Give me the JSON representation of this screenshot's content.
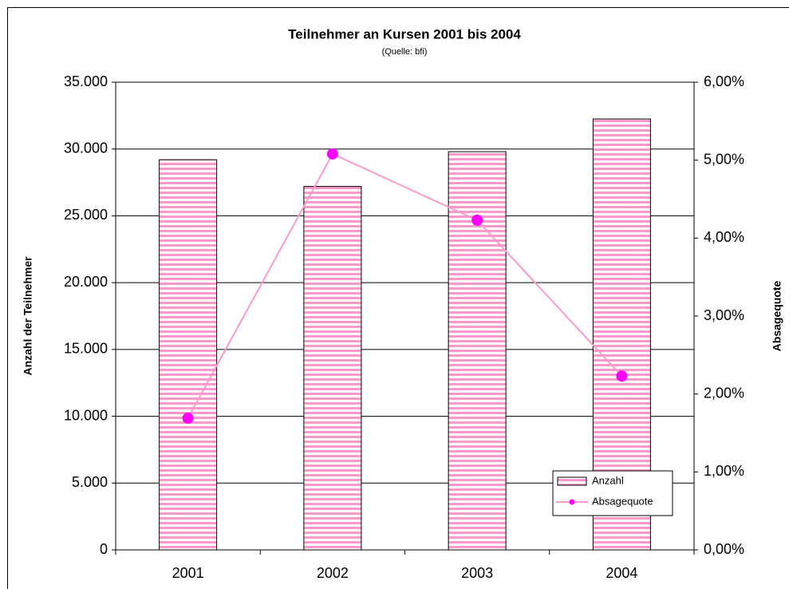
{
  "chart_data": {
    "type": "bar_line",
    "title": "Teilnehmer an Kursen 2001 bis 2004",
    "subtitle": "(Quelle: bfi)",
    "y_label": "Anzahl der Teilnehmer",
    "y2_label": "Absagequote",
    "categories": [
      "2001",
      "2002",
      "2003",
      "2004"
    ],
    "series": [
      {
        "name": "Anzahl",
        "type": "bar",
        "color": "#ff99cc",
        "values": [
          29200,
          27200,
          29800,
          32250
        ]
      },
      {
        "name": "Absagequote",
        "type": "line",
        "axis": "y2",
        "color": "#ff99cc",
        "marker_color": "#ff00ff",
        "values": [
          1.69,
          5.08,
          4.23,
          2.23
        ]
      }
    ],
    "ylim": [
      0,
      35000
    ],
    "yticks": [
      0,
      {
        "value": 5000,
        "label": "5.000"
      },
      {
        "value": 10000,
        "label": "10.000"
      },
      {
        "value": 15000,
        "label": "15.000"
      },
      {
        "value": 20000,
        "label": "20.000"
      },
      {
        "value": 25000,
        "label": "25.000"
      },
      {
        "value": 30000,
        "label": "30.000"
      },
      {
        "value": 35000,
        "label": "35.000"
      }
    ],
    "y2lim": [
      0,
      6
    ],
    "y2ticks": [
      {
        "value": 0,
        "label": "0,00%"
      },
      {
        "value": 1,
        "label": "1,00%"
      },
      {
        "value": 2,
        "label": "2,00%"
      },
      {
        "value": 3,
        "label": "3,00%"
      },
      {
        "value": 4,
        "label": "4,00%"
      },
      {
        "value": 5,
        "label": "5,00%"
      },
      {
        "value": 6,
        "label": "6,00%"
      }
    ],
    "grid": true,
    "legend": "lower right"
  }
}
